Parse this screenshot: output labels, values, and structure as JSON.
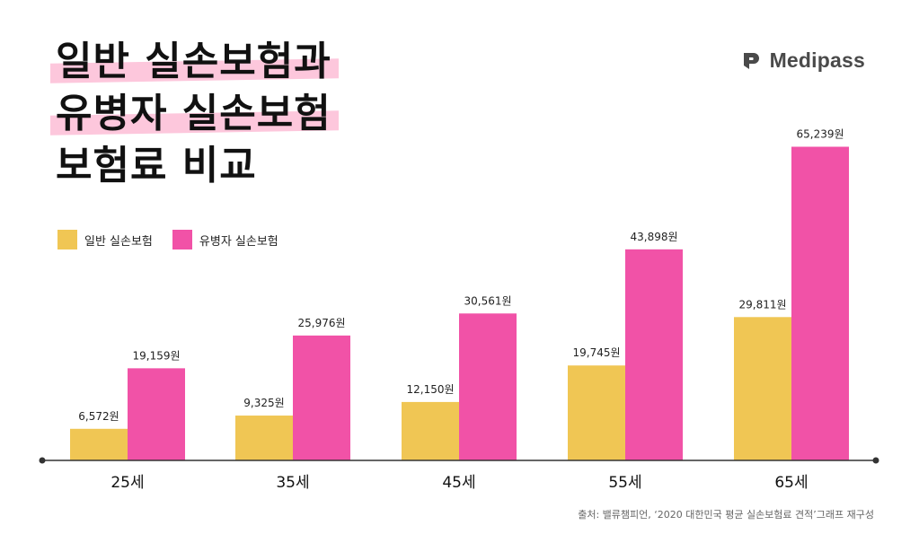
{
  "title": {
    "line1": "일반 실손보험과",
    "line2": "유병자 실손보험",
    "line3": "보험료 비교"
  },
  "brand": {
    "name": "Medipass",
    "icon": "medipass-logo-icon"
  },
  "colors": {
    "general": "#f0c654",
    "preexisting": "#f152a7",
    "highlight": "#fdc7dc",
    "axis": "#333333"
  },
  "source": "출처: 밸류챔피언, ‘2020 대한민국 평균 실손보험료 견적’그래프 재구성",
  "chart_data": {
    "type": "bar",
    "categories": [
      "25세",
      "35세",
      "45세",
      "55세",
      "65세"
    ],
    "series": [
      {
        "name": "일반 실손보험",
        "values": [
          6572,
          9325,
          12150,
          19745,
          29811
        ],
        "labels": [
          "6,572원",
          "9,325원",
          "12,150원",
          "19,745원",
          "29,811원"
        ]
      },
      {
        "name": "유병자 실손보험",
        "values": [
          19159,
          25976,
          30561,
          43898,
          65239
        ],
        "labels": [
          "19,159원",
          "25,976원",
          "30,561원",
          "43,898원",
          "65,239원"
        ]
      }
    ],
    "ylim": [
      0,
      70000
    ],
    "grid": false,
    "legend_position": "top-left"
  }
}
